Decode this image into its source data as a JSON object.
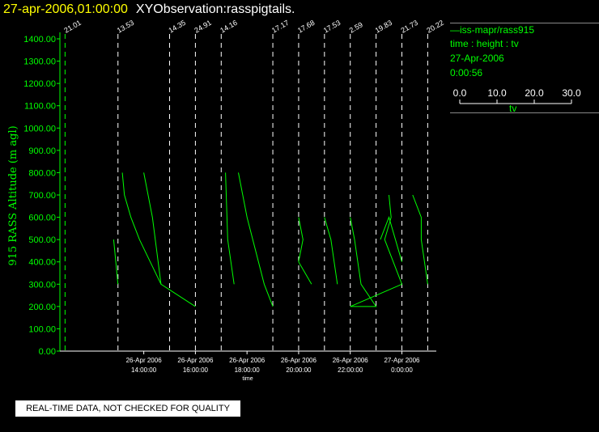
{
  "header": {
    "datetime": "27-apr-2006,01:00:00",
    "title": "XYObservation:rasspigtails."
  },
  "legend": {
    "series": "—iss-mapr/rass915",
    "vars": "time : height : tv",
    "date": "27-Apr-2006",
    "time": "0:00:56",
    "colorbar_ticks": [
      "0.0",
      "10.0",
      "20.0",
      "30.0"
    ],
    "colorbar_label": "tv"
  },
  "disclaimer": "REAL-TIME DATA, NOT CHECKED FOR QUALITY",
  "colors": {
    "trace": "#00ff00",
    "axis_text": "#00ff00",
    "title_time": "#ffff00",
    "background": "#000000"
  },
  "chart_data": {
    "type": "line",
    "title": "XYObservation:rasspigtails.",
    "ylabel": "915 RASS Altitude (m agl)",
    "xlabel": "time",
    "ylim": [
      0,
      1400
    ],
    "xlim": [
      "2006-04-26 10:45:00",
      "2006-04-27 01:20:00"
    ],
    "yticks": [
      "0.00",
      "100.00",
      "200.00",
      "300.00",
      "400.00",
      "500.00",
      "600.00",
      "700.00",
      "800.00",
      "900.00",
      "1000.00",
      "1100.00",
      "1200.00",
      "1300.00",
      "1400.00"
    ],
    "xticks": [
      {
        "at": "2006-04-26 14:00:00",
        "line1": "26-Apr 2006",
        "line2": "14:00:00"
      },
      {
        "at": "2006-04-26 16:00:00",
        "line1": "26-Apr 2006",
        "line2": "16:00:00"
      },
      {
        "at": "2006-04-26 18:00:00",
        "line1": "26-Apr 2006",
        "line2": "18:00:00"
      },
      {
        "at": "2006-04-26 20:00:00",
        "line1": "26-Apr 2006",
        "line2": "20:00:00"
      },
      {
        "at": "2006-04-26 22:00:00",
        "line1": "26-Apr 2006",
        "line2": "22:00:00"
      },
      {
        "at": "2006-04-27 00:00:00",
        "line1": "27-Apr 2006",
        "line2": "0:00:00"
      }
    ],
    "profile_markers": [
      {
        "time": "2006-04-26 10:57:00",
        "label": "21.01"
      },
      {
        "time": "2006-04-26 13:00:00",
        "label": "13.53"
      },
      {
        "time": "2006-04-26 15:00:00",
        "label": "14.35"
      },
      {
        "time": "2006-04-26 16:00:00",
        "label": "24.91"
      },
      {
        "time": "2006-04-26 17:00:00",
        "label": "14.16"
      },
      {
        "time": "2006-04-26 19:00:00",
        "label": "17.17"
      },
      {
        "time": "2006-04-26 20:00:00",
        "label": "17.68"
      },
      {
        "time": "2006-04-26 21:00:00",
        "label": "17.53"
      },
      {
        "time": "2006-04-26 22:00:00",
        "label": "2.59"
      },
      {
        "time": "2006-04-26 23:00:00",
        "label": "19.83"
      },
      {
        "time": "2006-04-27 00:00:00",
        "label": "21.73"
      },
      {
        "time": "2006-04-27 01:00:00",
        "label": "20.22"
      }
    ],
    "series": [
      {
        "points": [
          [
            "2006-04-26 12:50:00",
            500
          ],
          [
            "2006-04-26 13:00:00",
            300
          ]
        ]
      },
      {
        "points": [
          [
            "2006-04-26 13:10:00",
            800
          ],
          [
            "2006-04-26 13:15:00",
            700
          ],
          [
            "2006-04-26 13:30:00",
            600
          ],
          [
            "2006-04-26 13:50:00",
            500
          ],
          [
            "2006-04-26 14:40:00",
            300
          ],
          [
            "2006-04-26 16:00:00",
            200
          ]
        ]
      },
      {
        "points": [
          [
            "2006-04-26 14:00:00",
            800
          ],
          [
            "2006-04-26 14:20:00",
            600
          ],
          [
            "2006-04-26 14:40:00",
            300
          ]
        ]
      },
      {
        "points": [
          [
            "2006-04-26 17:10:00",
            800
          ],
          [
            "2006-04-26 17:15:00",
            500
          ],
          [
            "2006-04-26 17:30:00",
            300
          ]
        ]
      },
      {
        "points": [
          [
            "2006-04-26 17:40:00",
            800
          ],
          [
            "2006-04-26 18:00:00",
            600
          ],
          [
            "2006-04-26 18:40:00",
            300
          ],
          [
            "2006-04-26 19:00:00",
            200
          ]
        ]
      },
      {
        "points": [
          [
            "2006-04-26 20:00:00",
            600
          ],
          [
            "2006-04-26 20:10:00",
            500
          ],
          [
            "2006-04-26 20:00:00",
            400
          ],
          [
            "2006-04-26 20:30:00",
            300
          ]
        ]
      },
      {
        "points": [
          [
            "2006-04-26 21:00:00",
            600
          ],
          [
            "2006-04-26 21:15:00",
            500
          ],
          [
            "2006-04-26 21:30:00",
            300
          ]
        ]
      },
      {
        "points": [
          [
            "2006-04-26 22:00:00",
            600
          ],
          [
            "2006-04-26 22:10:00",
            500
          ],
          [
            "2006-04-26 22:25:00",
            300
          ],
          [
            "2006-04-26 23:00:00",
            200
          ],
          [
            "2006-04-26 22:00:00",
            200
          ]
        ]
      },
      {
        "points": [
          [
            "2006-04-26 22:00:00",
            200
          ],
          [
            "2006-04-27 00:00:00",
            300
          ]
        ]
      },
      {
        "points": [
          [
            "2006-04-26 23:30:00",
            700
          ],
          [
            "2006-04-26 23:35:00",
            600
          ],
          [
            "2006-04-26 23:20:00",
            500
          ],
          [
            "2006-04-27 00:00:00",
            300
          ]
        ]
      },
      {
        "points": [
          [
            "2006-04-26 23:10:00",
            500
          ],
          [
            "2006-04-26 23:30:00",
            600
          ],
          [
            "2006-04-27 00:00:00",
            400
          ]
        ]
      },
      {
        "points": [
          [
            "2006-04-27 00:25:00",
            700
          ],
          [
            "2006-04-27 00:45:00",
            600
          ],
          [
            "2006-04-27 00:45:00",
            500
          ],
          [
            "2006-04-27 01:00:00",
            300
          ]
        ]
      }
    ]
  }
}
